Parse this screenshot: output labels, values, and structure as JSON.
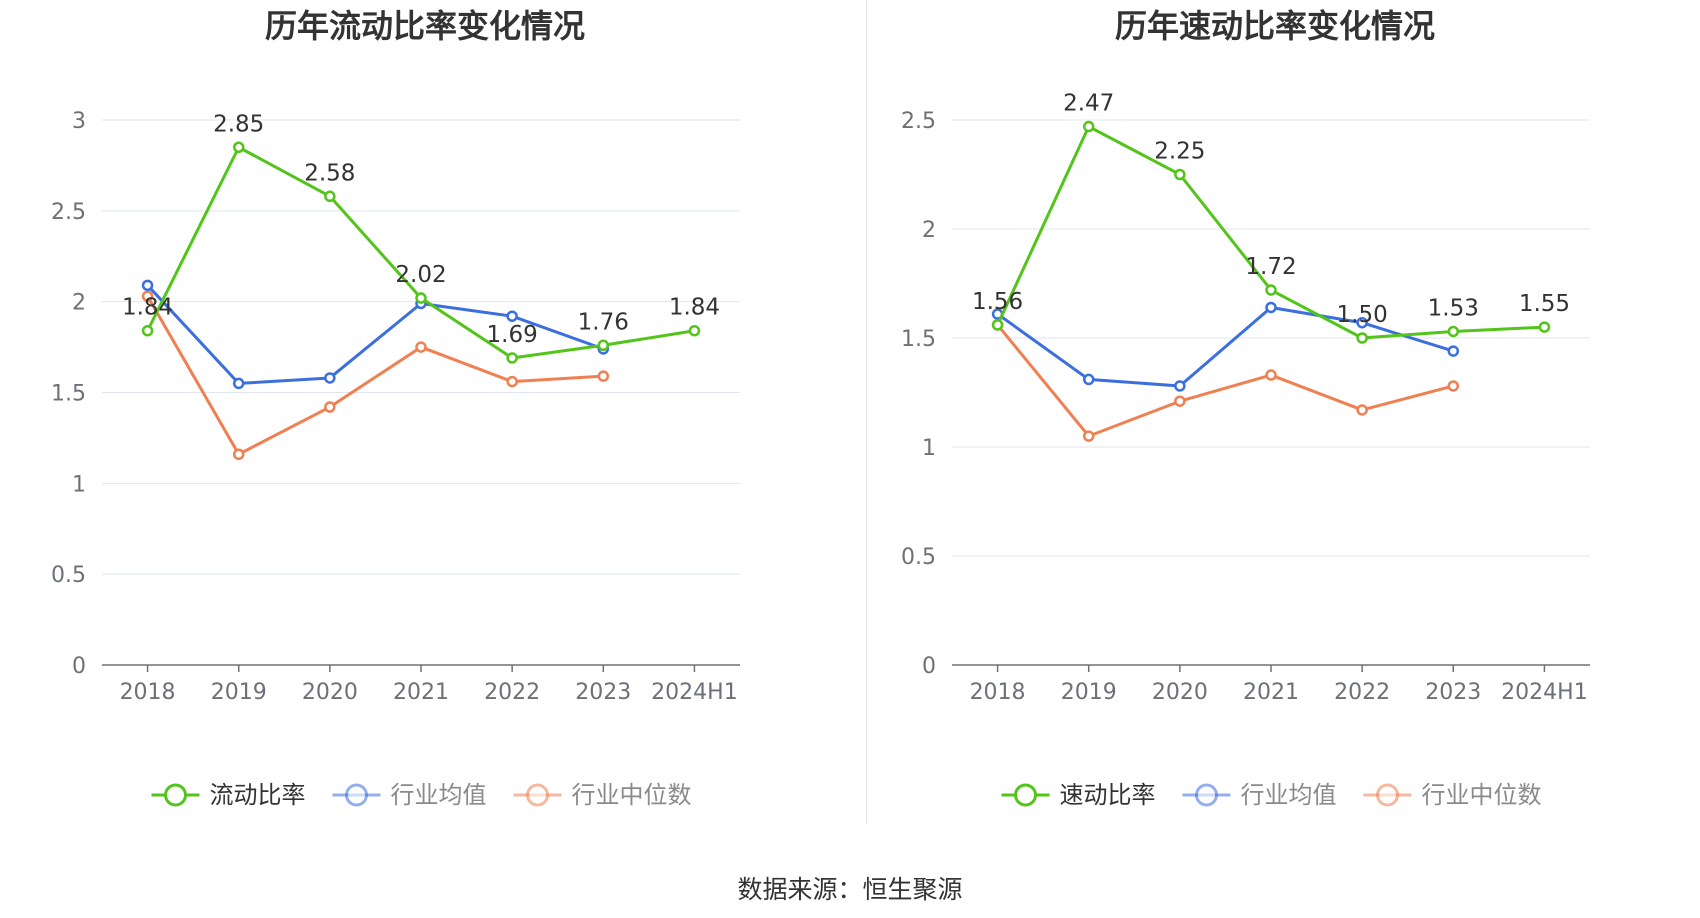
{
  "source_label": "数据来源：恒生聚源",
  "chart_data": [
    {
      "type": "line",
      "title": "历年流动比率变化情况",
      "categories": [
        "2018",
        "2019",
        "2020",
        "2021",
        "2022",
        "2023",
        "2024H1"
      ],
      "ylim": [
        0,
        3
      ],
      "yticks": [
        "0",
        "0.5",
        "1",
        "1.5",
        "2",
        "2.5",
        "3"
      ],
      "grid": true,
      "legend_position": "bottom",
      "series": [
        {
          "name": "流动比率",
          "color": "#52c41a",
          "values": [
            1.84,
            2.85,
            2.58,
            2.02,
            1.69,
            1.76,
            1.84
          ],
          "labels": [
            "1.84",
            "2.85",
            "2.58",
            "2.02",
            "1.69",
            "1.76",
            "1.84"
          ]
        },
        {
          "name": "行业均值",
          "color": "#3b6fe0",
          "values": [
            2.09,
            1.55,
            1.58,
            1.99,
            1.92,
            1.74,
            null
          ]
        },
        {
          "name": "行业中位数",
          "color": "#f07f52",
          "values": [
            2.03,
            1.16,
            1.42,
            1.75,
            1.56,
            1.59,
            null
          ]
        }
      ]
    },
    {
      "type": "line",
      "title": "历年速动比率变化情况",
      "categories": [
        "2018",
        "2019",
        "2020",
        "2021",
        "2022",
        "2023",
        "2024H1"
      ],
      "ylim": [
        0,
        2.5
      ],
      "yticks": [
        "0",
        "0.5",
        "1",
        "1.5",
        "2",
        "2.5"
      ],
      "grid": true,
      "legend_position": "bottom",
      "series": [
        {
          "name": "速动比率",
          "color": "#52c41a",
          "values": [
            1.56,
            2.47,
            2.25,
            1.72,
            1.5,
            1.53,
            1.55
          ],
          "labels": [
            "1.56",
            "2.47",
            "2.25",
            "1.72",
            "1.50",
            "1.53",
            "1.55"
          ]
        },
        {
          "name": "行业均值",
          "color": "#3b6fe0",
          "values": [
            1.61,
            1.31,
            1.28,
            1.64,
            1.57,
            1.44,
            null
          ]
        },
        {
          "name": "行业中位数",
          "color": "#f07f52",
          "values": [
            1.56,
            1.05,
            1.21,
            1.33,
            1.17,
            1.28,
            null
          ]
        }
      ]
    }
  ]
}
